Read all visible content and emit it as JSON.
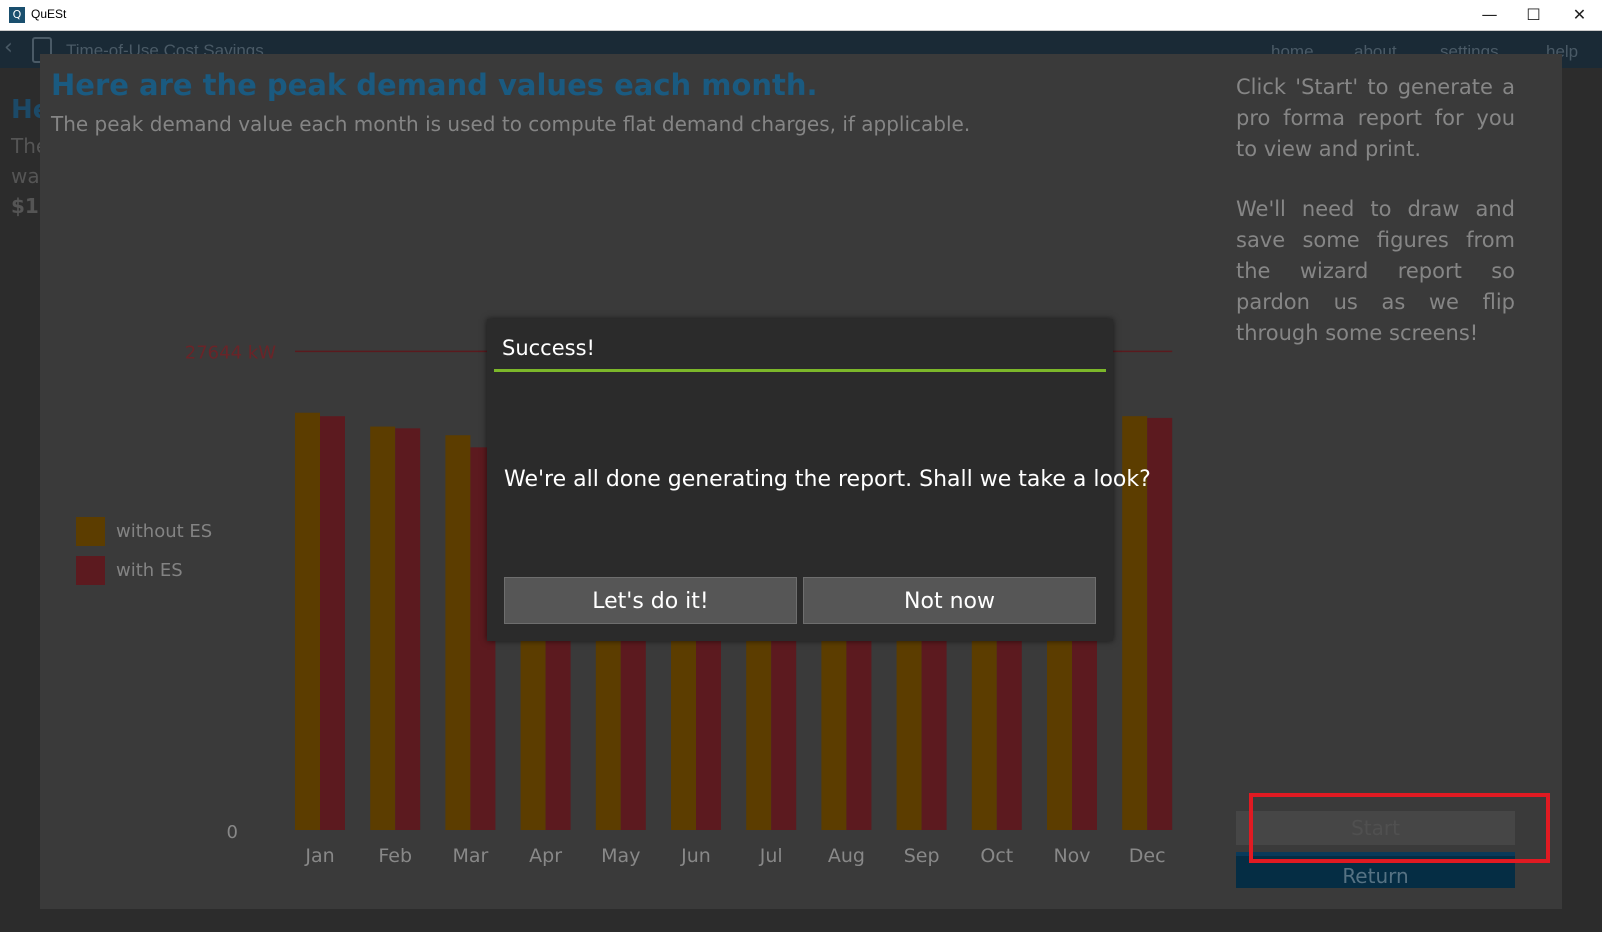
{
  "window": {
    "title": "QuESt",
    "icon_letter": "Q",
    "controls": {
      "minimize": "—",
      "maximize": "☐",
      "close": "✕"
    }
  },
  "appbar": {
    "back_glyph": "‹",
    "page_title": "Time-of-Use Cost Savings",
    "nav": [
      "home",
      "about",
      "settings",
      "help"
    ]
  },
  "background_page": {
    "heading": "He",
    "lines": [
      "The",
      "wa",
      "$1,"
    ]
  },
  "wizard": {
    "title": "Here are the peak demand values each month.",
    "subtitle": "The peak demand value each month is used to compute flat demand charges, if applicable.",
    "side_text_1": "Click 'Start' to generate a pro forma report for you to view and print.",
    "side_text_2": "We'll need to draw and save some figures from the wizard report so pardon us as we flip through some screens!",
    "start_label": "Start",
    "return_label": "Return"
  },
  "legend": [
    {
      "label": "without ES",
      "color": "#5c3d00"
    },
    {
      "label": "with ES",
      "color": "#5c1a1f"
    }
  ],
  "chart_data": {
    "type": "bar",
    "categories": [
      "Jan",
      "Feb",
      "Mar",
      "Apr",
      "May",
      "Jun",
      "Jul",
      "Aug",
      "Sep",
      "Oct",
      "Nov",
      "Dec"
    ],
    "series": [
      {
        "name": "without ES",
        "color": "#5c3d00",
        "values": [
          24100,
          23300,
          22800,
          22100,
          22100,
          22100,
          22100,
          22100,
          22100,
          22100,
          22100,
          23900
        ]
      },
      {
        "name": "with ES",
        "color": "#5c1a1f",
        "values": [
          23900,
          23200,
          22100,
          22100,
          22100,
          22100,
          22100,
          22100,
          22100,
          22100,
          22400,
          23800
        ]
      }
    ],
    "peak_line": {
      "value": 27644,
      "label": "27644 kW",
      "color": "#5a1a1e"
    },
    "y_tick_labels": [
      "0"
    ],
    "ylim": [
      0,
      28300
    ],
    "grid": false
  },
  "dialog": {
    "title": "Success!",
    "message": "We're all done generating the report. Shall we take a look?",
    "confirm_label": "Let's do it!",
    "cancel_label": "Not now",
    "accent": "#7cb72a"
  }
}
